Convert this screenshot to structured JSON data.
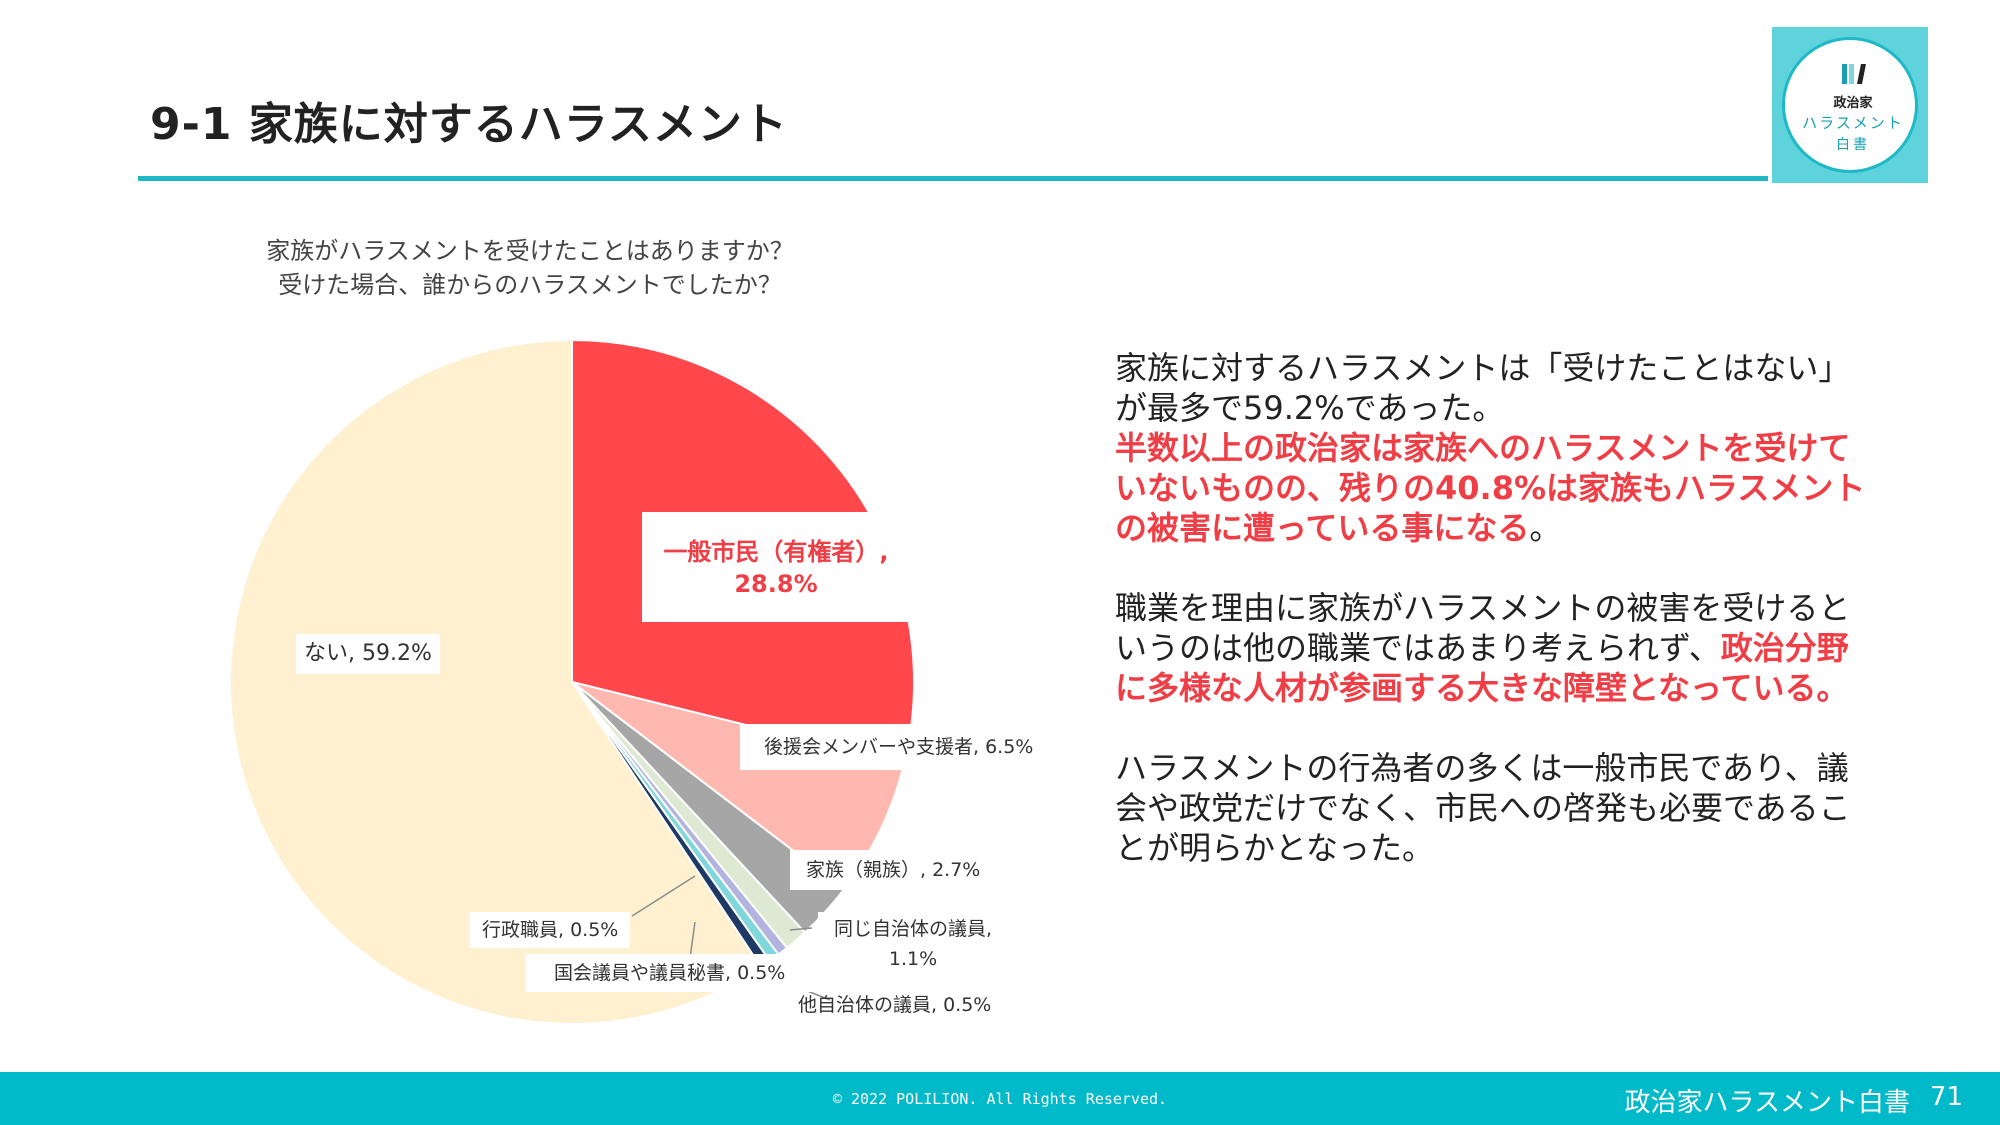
{
  "header": {
    "title": "9-1 家族に対するハラスメント"
  },
  "logo": {
    "line1": "政治家",
    "line2": "ハラスメント",
    "line3": "白書"
  },
  "chart_data": {
    "type": "pie",
    "title_lines": [
      "家族がハラスメントを受けたことはありますか？",
      "受けた場合、誰からのハラスメントでしたか？"
    ],
    "slices": [
      {
        "label": "一般市民（有権者）, 28.8%",
        "name": "一般市民（有権者）",
        "value": 28.8,
        "color": "#ff474c"
      },
      {
        "label": "後援会メンバーや支援者, 6.5%",
        "name": "後援会メンバーや支援者",
        "value": 6.5,
        "color": "#ffb8b0"
      },
      {
        "label": "家族（親族）, 2.7%",
        "name": "家族（親族）",
        "value": 2.7,
        "color": "#a6a6a6"
      },
      {
        "label": "同じ自治体の議員, 1.1%",
        "name": "同じ自治体の議員",
        "value": 1.1,
        "color": "#dde9d2"
      },
      {
        "label": "他自治体の議員, 0.5%",
        "name": "他自治体の議員",
        "value": 0.5,
        "color": "#b3b3e0"
      },
      {
        "label": "国会議員や議員秘書, 0.5%",
        "name": "国会議員や議員秘書",
        "value": 0.5,
        "color": "#7fd6dc"
      },
      {
        "label": "行政職員, 0.5%",
        "name": "行政職員",
        "value": 0.5,
        "color": "#1f3864"
      },
      {
        "label": "ない, 59.2%",
        "name": "ない",
        "value": 59.2,
        "color": "#fff1d0"
      }
    ]
  },
  "body": {
    "p1_line1": "家族に対するハラスメントは「受けたことはない」",
    "p1_line2": "が最多で59.2%であった。",
    "p1_red1": "半数以上の政治家は家族へのハラスメントを受けて",
    "p1_red2": "いないものの、残りの40.8%は家族もハラスメント",
    "p1_red3": "の被害に遭っている事になる",
    "p1_tail": "。",
    "p2_line1": "職業を理由に家族がハラスメントの被害を受けると",
    "p2_line2a": "いうのは他の職業ではあまり考えられず、",
    "p2_line2b": "政治分野",
    "p2_red3": "に多様な人材が参画する大きな障壁となっている。",
    "p3_line1": "ハラスメントの行為者の多くは一般市民であり、議",
    "p3_line2": "会や政党だけでなく、市民への啓発も必要であるこ",
    "p3_line3": "とが明らかとなった。"
  },
  "footer": {
    "copyright": "© 2022 POLILION. All Rights Reserved.",
    "brand": "政治家ハラスメント白書",
    "page": "71"
  }
}
